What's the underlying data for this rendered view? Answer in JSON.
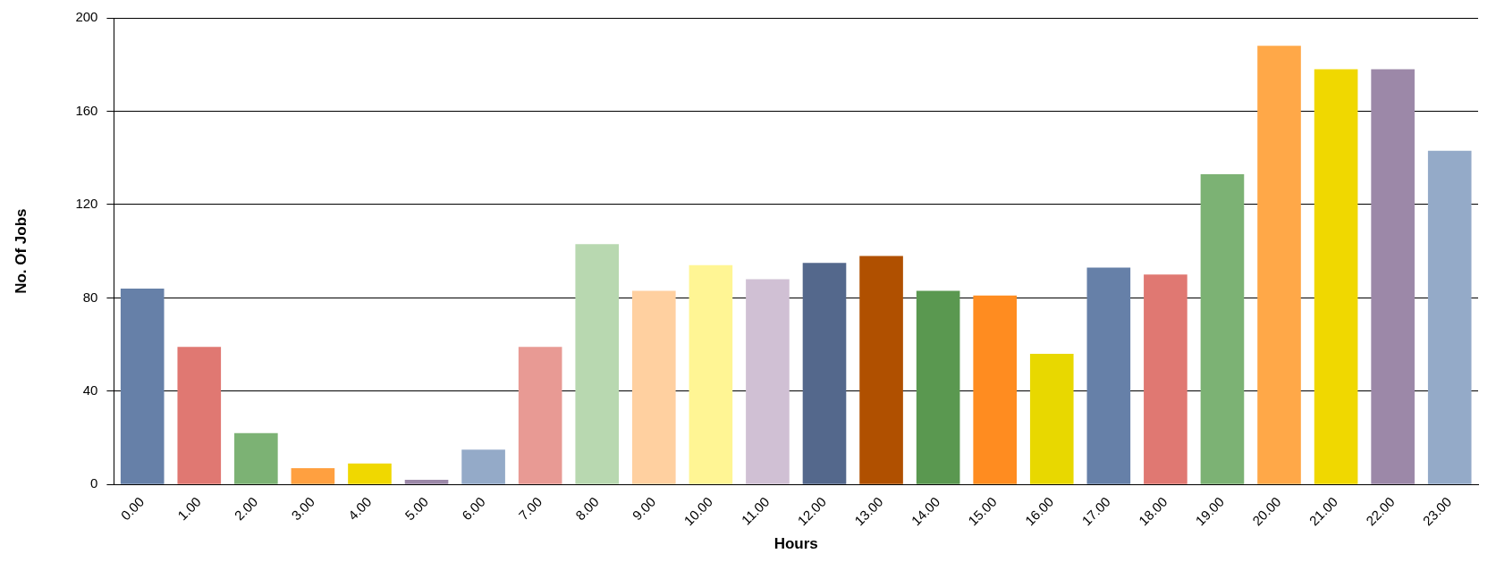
{
  "chart_data": {
    "type": "bar",
    "xlabel": "Hours",
    "ylabel": "No. Of Jobs",
    "categories": [
      "0.00",
      "1.00",
      "2.00",
      "3.00",
      "4.00",
      "5.00",
      "6.00",
      "7.00",
      "8.00",
      "9.00",
      "10.00",
      "11.00",
      "12.00",
      "13.00",
      "14.00",
      "15.00",
      "16.00",
      "17.00",
      "18.00",
      "19.00",
      "20.00",
      "21.00",
      "22.00",
      "23.00"
    ],
    "values": [
      84,
      59,
      22,
      7,
      9,
      2,
      15,
      59,
      103,
      83,
      94,
      88,
      95,
      98,
      83,
      81,
      56,
      93,
      90,
      133,
      188,
      178,
      178,
      143
    ],
    "colors": [
      "#6680a8",
      "#e07872",
      "#7cb274",
      "#ffa040",
      "#f0d800",
      "#9c88a8",
      "#94aac8",
      "#e89a94",
      "#b8d8b0",
      "#ffd0a0",
      "#fff594",
      "#d0c0d4",
      "#54688c",
      "#b05000",
      "#5a9850",
      "#ff8c20",
      "#e8d800",
      "#6680a8",
      "#e07872",
      "#7cb274",
      "#ffa848",
      "#f0d800",
      "#9c88a8",
      "#94aac8"
    ],
    "ylim": [
      0,
      200
    ],
    "yticks": [
      0,
      40,
      80,
      120,
      160,
      200
    ],
    "grid": "y",
    "legend": false
  }
}
